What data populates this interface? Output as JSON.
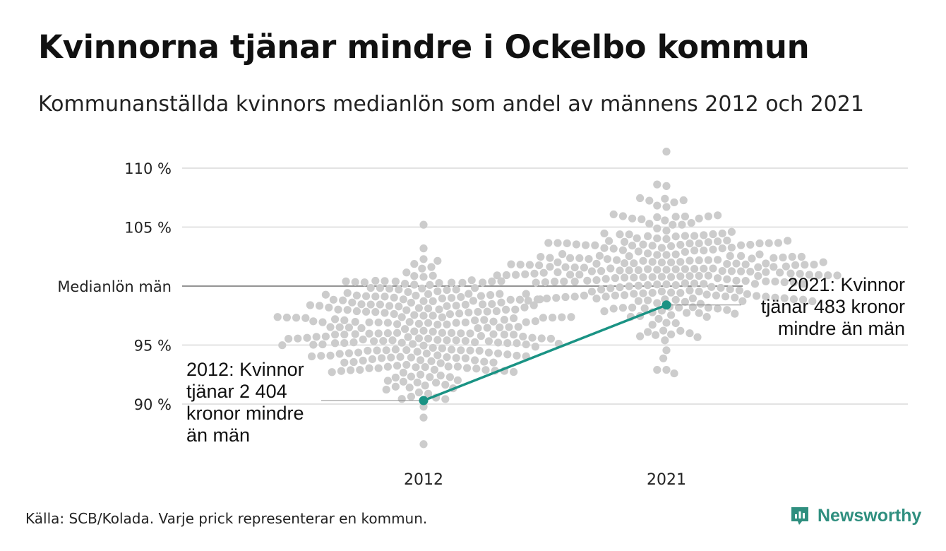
{
  "title": "Kvinnorna tjänar mindre i Ockelbo kommun",
  "subtitle": "Kommunanställda kvinnors medianlön som andel av männens 2012 och 2021",
  "source": "Källa: SCB/Kolada. Varje prick representerar en kommun.",
  "logo": {
    "text": "Newsworthy",
    "icon": "newsworthy-chart-icon",
    "color": "#2f8f7f"
  },
  "chart_data": {
    "type": "scatter",
    "title": "Kvinnorna tjänar mindre i Ockelbo kommun",
    "subtitle": "Kommunanställda kvinnors medianlön som andel av männens 2012 och 2021",
    "categories": [
      "2012",
      "2021"
    ],
    "ylim": [
      87,
      112
    ],
    "y_ticks": [
      {
        "value": 90,
        "label": "90 %"
      },
      {
        "value": 95,
        "label": "95 %"
      },
      {
        "value": 100,
        "label": "Medianlön män"
      },
      {
        "value": 105,
        "label": "105 %"
      },
      {
        "value": 110,
        "label": "110 %"
      }
    ],
    "reference_line": {
      "value": 100,
      "label": "Medianlön män"
    },
    "grid": true,
    "distributions": [
      {
        "category": "2012",
        "n": 290,
        "median": 96.2,
        "spread": 2.8,
        "min": 86.6,
        "max": 105.2
      },
      {
        "category": "2021",
        "n": 290,
        "median": 101.4,
        "spread": 2.6,
        "min": 92.6,
        "max": 111.4
      }
    ],
    "highlight": {
      "name": "Ockelbo",
      "color": "#1a9384",
      "points": [
        {
          "x": "2012",
          "y": 90.3
        },
        {
          "x": "2021",
          "y": 98.4
        }
      ]
    },
    "annotations": [
      {
        "x": "2012",
        "y": 90.3,
        "text": "2012: Kvinnor tjänar 2 404 kronor mindre än män"
      },
      {
        "x": "2021",
        "y": 98.4,
        "text": "2021: Kvinnor tjänar 483 kronor mindre än män"
      }
    ],
    "dot_color": "#cccccc",
    "gridline_color": "#e3e3e3",
    "reference_line_color": "#555555"
  }
}
